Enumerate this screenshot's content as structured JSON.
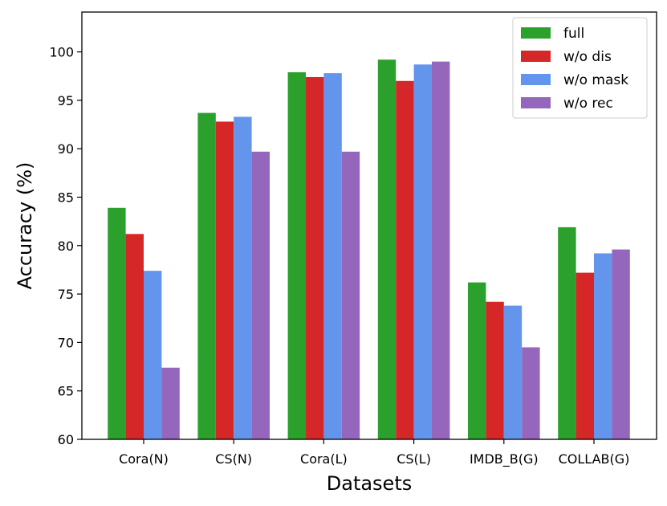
{
  "chart_data": {
    "type": "bar",
    "title": "",
    "xlabel": "Datasets",
    "ylabel": "Accuracy (%)",
    "ylim": [
      60,
      104
    ],
    "yticks": [
      60,
      65,
      70,
      75,
      80,
      85,
      90,
      95,
      100
    ],
    "grid": false,
    "legend_position": "top-right",
    "categories": [
      "Cora(N)",
      "CS(N)",
      "Cora(L)",
      "CS(L)",
      "IMDB_B(G)",
      "COLLAB(G)"
    ],
    "series": [
      {
        "name": "full",
        "color": "#2ca02c",
        "values": [
          83.9,
          93.7,
          97.9,
          99.2,
          76.2,
          81.9
        ]
      },
      {
        "name": "w/o dis",
        "color": "#d62728",
        "values": [
          81.2,
          92.8,
          97.4,
          97.0,
          74.2,
          77.2
        ]
      },
      {
        "name": "w/o mask",
        "color": "#6495ed",
        "values": [
          77.4,
          93.3,
          97.8,
          98.7,
          73.8,
          79.2
        ]
      },
      {
        "name": "w/o rec",
        "color": "#9467bd",
        "values": [
          67.4,
          89.7,
          89.7,
          99.0,
          69.5,
          79.6
        ]
      }
    ]
  }
}
